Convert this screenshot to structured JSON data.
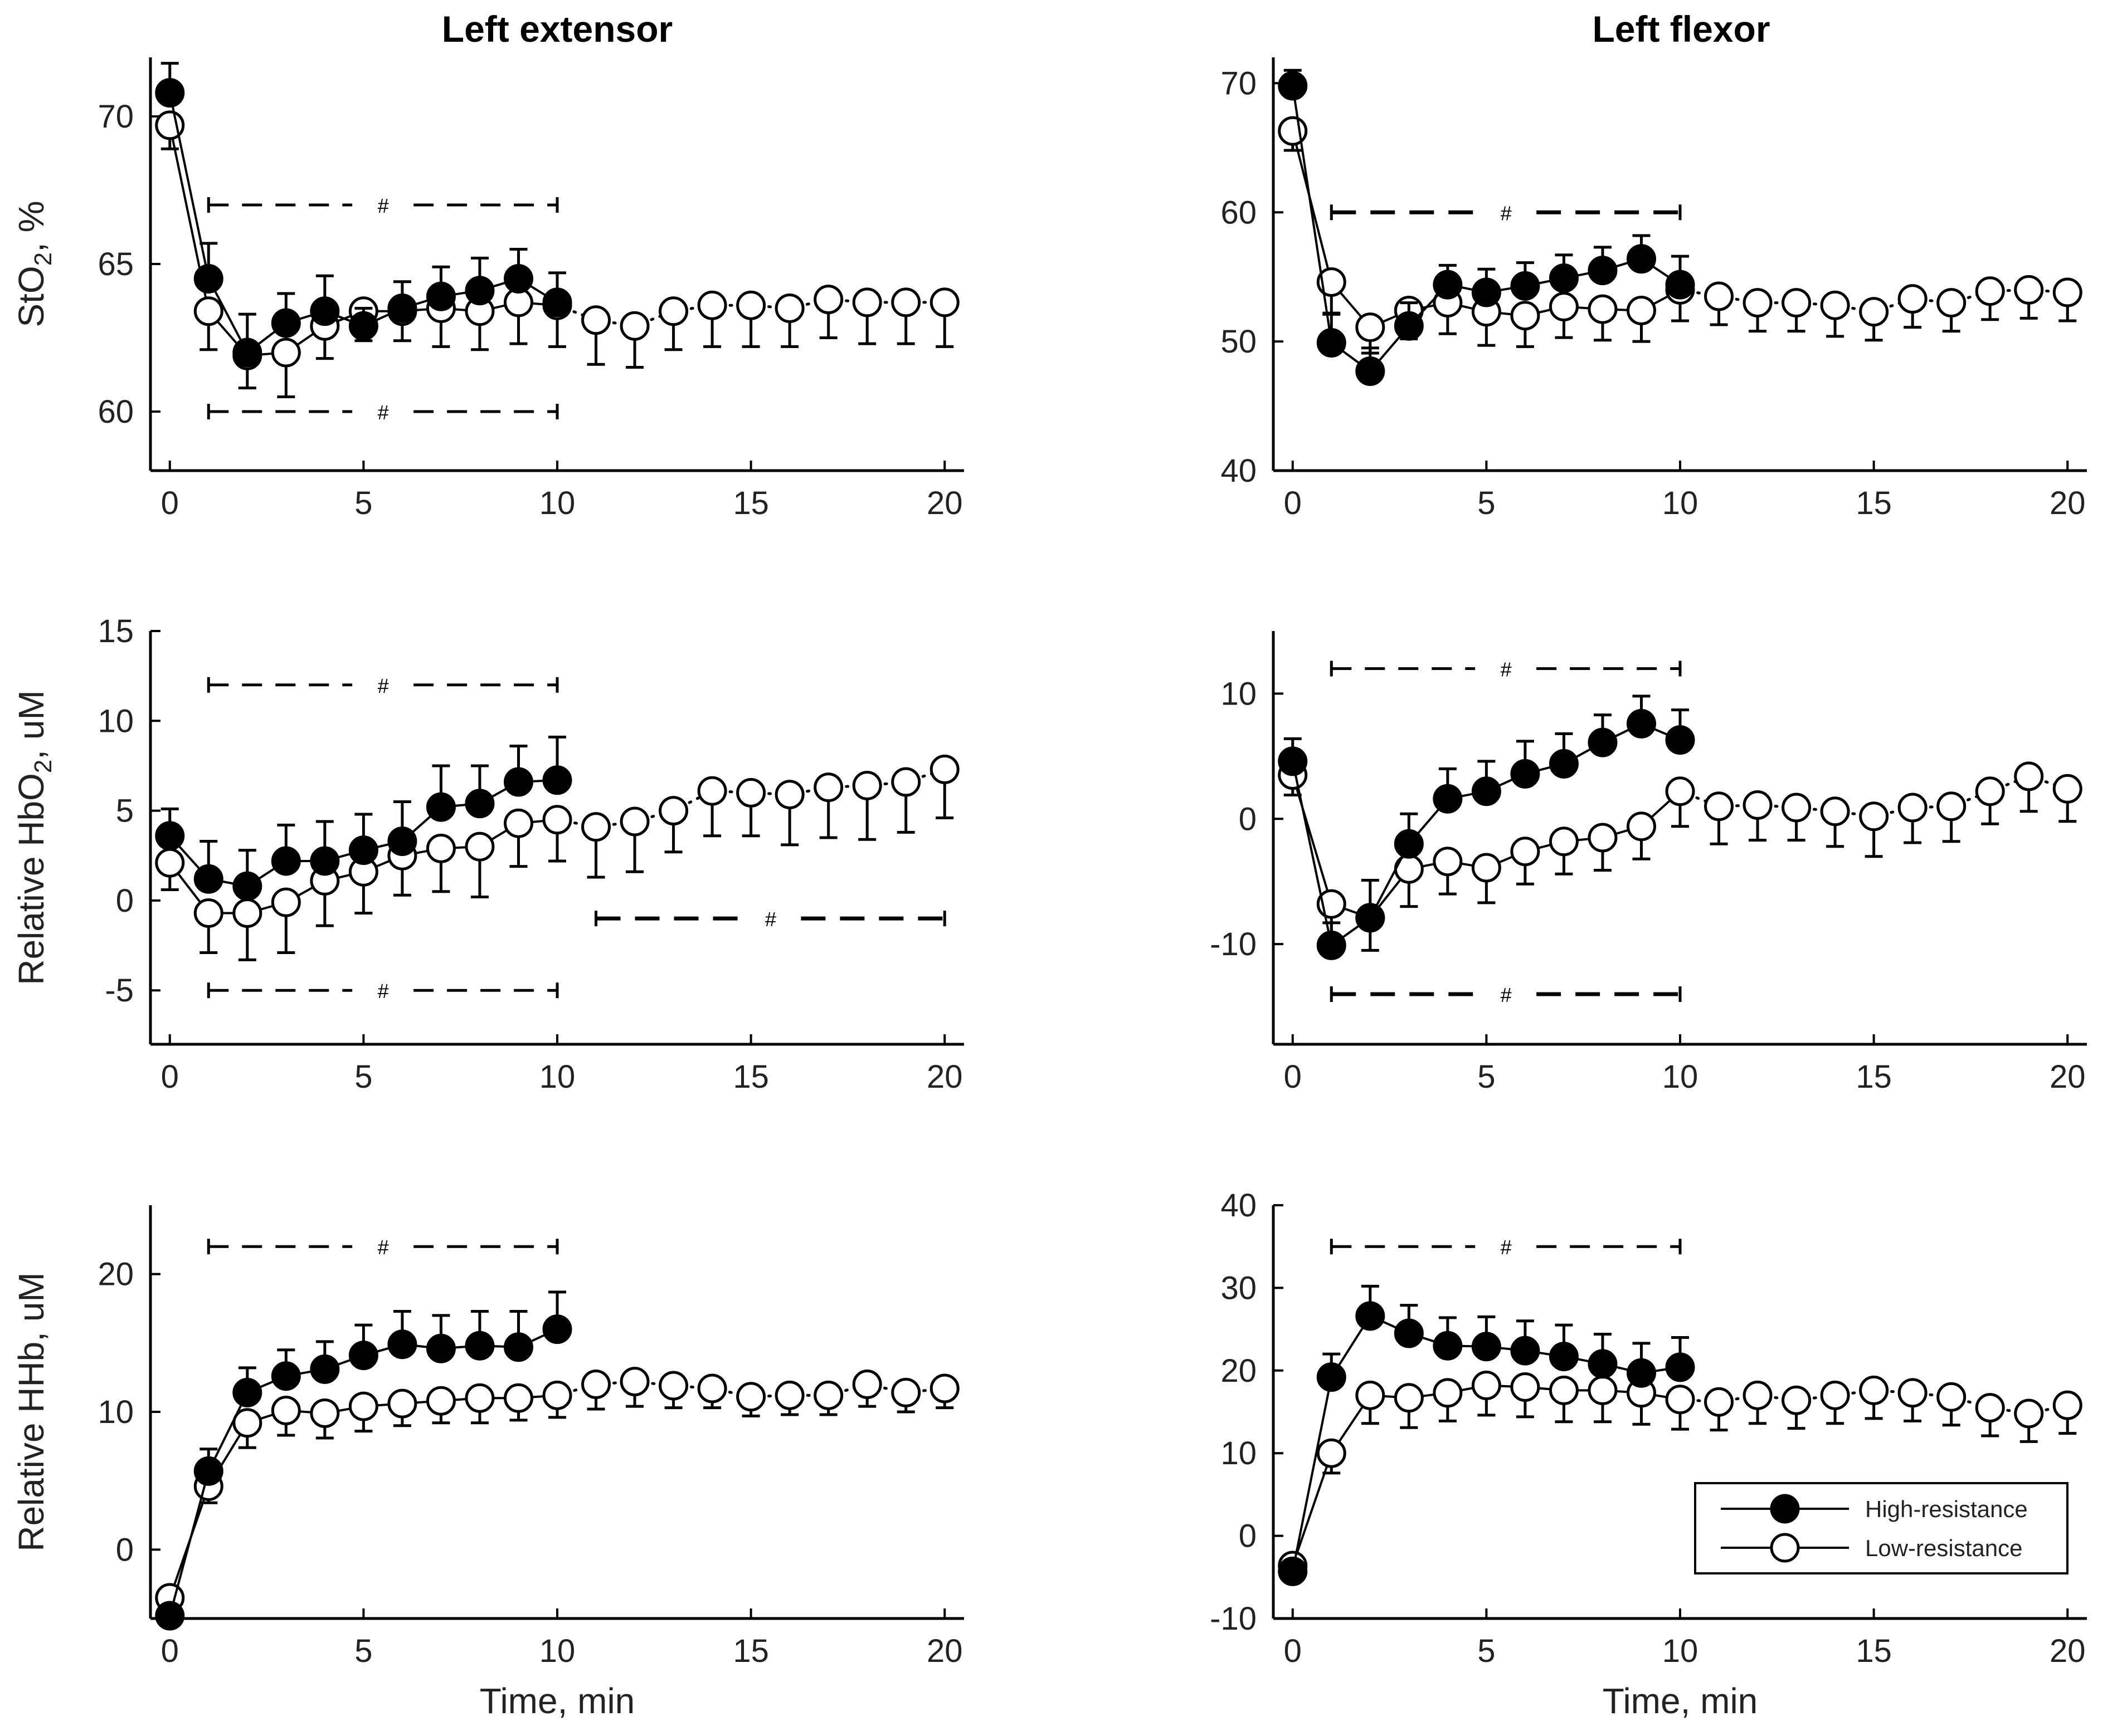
{
  "figure": {
    "column_titles": [
      "Left extensor",
      "Left flexor"
    ],
    "x_axis_title": "Time, min",
    "legend": [
      {
        "label": "High-resistance",
        "marker": "filled-circle"
      },
      {
        "label": "Low-resistance",
        "marker": "open-circle"
      }
    ],
    "sig_symbol": "#"
  },
  "chart_data": [
    {
      "type": "line",
      "panel": "StO2 – Left extensor",
      "title": "Left extensor",
      "ylabel": "StO₂, %",
      "ylabel_base": "StO",
      "ylabel_sub": "2",
      "ylabel_suffix": ", %",
      "xlabel": "",
      "xlim": [
        0,
        20
      ],
      "ylim": [
        58,
        72
      ],
      "xticks": [
        0,
        5,
        10,
        15,
        20
      ],
      "yticks": [
        60,
        65,
        70
      ],
      "series": [
        {
          "name": "High-resistance",
          "x": [
            0,
            1,
            2,
            3,
            4,
            5,
            6,
            7,
            8,
            9,
            10
          ],
          "y": [
            70.8,
            64.5,
            62.0,
            63.0,
            63.4,
            62.9,
            63.5,
            63.9,
            64.1,
            64.5,
            63.7
          ],
          "err": [
            1.0,
            1.2,
            1.3,
            1.0,
            1.2,
            0.6,
            0.9,
            1.0,
            1.1,
            1.0,
            1.0
          ]
        },
        {
          "name": "Low-resistance",
          "x": [
            0,
            1,
            2,
            3,
            4,
            5,
            6,
            7,
            8,
            9,
            10,
            11,
            12,
            13,
            14,
            15,
            16,
            17,
            18,
            19,
            20
          ],
          "y": [
            69.7,
            63.4,
            61.9,
            62.0,
            62.9,
            63.4,
            63.4,
            63.5,
            63.4,
            63.7,
            63.6,
            63.1,
            62.9,
            63.4,
            63.6,
            63.6,
            63.5,
            63.8,
            63.7,
            63.7,
            63.7
          ],
          "err": [
            0.8,
            1.3,
            1.1,
            1.5,
            1.1,
            1.0,
            1.0,
            1.3,
            1.3,
            1.4,
            1.4,
            1.5,
            1.4,
            1.3,
            1.4,
            1.4,
            1.3,
            1.3,
            1.4,
            1.4,
            1.5
          ]
        }
      ],
      "significance": [
        {
          "x1": 1,
          "x2": 10,
          "y": 67,
          "style": "thin"
        },
        {
          "x1": 1,
          "x2": 10,
          "y": 60,
          "style": "thin"
        }
      ]
    },
    {
      "type": "line",
      "panel": "StO2 – Left flexor",
      "title": "Left flexor",
      "ylabel": "",
      "xlabel": "",
      "xlim": [
        0,
        20
      ],
      "ylim": [
        40,
        72
      ],
      "xticks": [
        0,
        5,
        10,
        15,
        20
      ],
      "yticks": [
        40,
        50,
        60,
        70
      ],
      "series": [
        {
          "name": "High-resistance",
          "x": [
            0,
            1,
            2,
            3,
            4,
            5,
            6,
            7,
            8,
            9,
            10
          ],
          "y": [
            69.8,
            49.9,
            47.7,
            51.2,
            54.4,
            53.8,
            54.3,
            54.9,
            55.5,
            56.4,
            54.4
          ],
          "err": [
            1.2,
            2.3,
            1.8,
            1.8,
            1.5,
            1.8,
            1.8,
            1.8,
            1.8,
            1.8,
            2.2
          ]
        },
        {
          "name": "Low-resistance",
          "x": [
            0,
            1,
            2,
            3,
            4,
            5,
            6,
            7,
            8,
            9,
            10,
            11,
            12,
            13,
            14,
            15,
            16,
            17,
            18,
            19,
            20
          ],
          "y": [
            66.3,
            54.6,
            51.1,
            52.4,
            53.0,
            52.3,
            52.0,
            52.7,
            52.5,
            52.4,
            54.0,
            53.5,
            53.0,
            53.0,
            52.8,
            52.3,
            53.3,
            53.0,
            53.9,
            54.0,
            53.8
          ],
          "err": [
            1.5,
            2.5,
            2.0,
            2.2,
            2.4,
            2.6,
            2.4,
            2.4,
            2.4,
            2.4,
            2.4,
            2.2,
            2.2,
            2.2,
            2.4,
            2.2,
            2.2,
            2.2,
            2.2,
            2.2,
            2.2
          ]
        }
      ],
      "significance": [
        {
          "x1": 1,
          "x2": 10,
          "y": 60,
          "style": "thick"
        }
      ]
    },
    {
      "type": "line",
      "panel": "HbO2 – Left extensor",
      "ylabel": "Relative HbO₂, uM",
      "ylabel_base": "Relative HbO",
      "ylabel_sub": "2",
      "ylabel_suffix": ", uM",
      "xlabel": "",
      "xlim": [
        0,
        20
      ],
      "ylim": [
        -8,
        15
      ],
      "xticks": [
        0,
        5,
        10,
        15,
        20
      ],
      "yticks": [
        -5,
        0,
        5,
        10,
        15
      ],
      "series": [
        {
          "name": "High-resistance",
          "x": [
            0,
            1,
            2,
            3,
            4,
            5,
            6,
            7,
            8,
            9,
            10
          ],
          "y": [
            3.6,
            1.2,
            0.8,
            2.2,
            2.2,
            2.8,
            3.3,
            5.2,
            5.4,
            6.6,
            6.7
          ],
          "err": [
            1.5,
            2.1,
            2.0,
            2.0,
            2.2,
            2.0,
            2.2,
            2.3,
            2.1,
            2.0,
            2.4
          ]
        },
        {
          "name": "Low-resistance",
          "x": [
            0,
            1,
            2,
            3,
            4,
            5,
            6,
            7,
            8,
            9,
            10,
            11,
            12,
            13,
            14,
            15,
            16,
            17,
            18,
            19,
            20
          ],
          "y": [
            2.1,
            -0.7,
            -0.7,
            -0.1,
            1.1,
            1.6,
            2.5,
            2.9,
            3.0,
            4.3,
            4.5,
            4.1,
            4.4,
            5.0,
            6.1,
            6.0,
            5.9,
            6.3,
            6.4,
            6.6,
            7.3
          ],
          "err": [
            1.5,
            2.2,
            2.6,
            2.8,
            2.5,
            2.3,
            2.2,
            2.4,
            2.8,
            2.4,
            2.3,
            2.8,
            2.8,
            2.3,
            2.5,
            2.4,
            2.8,
            2.8,
            3.0,
            2.8,
            2.7
          ]
        }
      ],
      "significance": [
        {
          "x1": 1,
          "x2": 10,
          "y": 12,
          "style": "thin"
        },
        {
          "x1": 11,
          "x2": 20,
          "y": -1,
          "style": "thick"
        },
        {
          "x1": 1,
          "x2": 10,
          "y": -5,
          "style": "thin"
        }
      ]
    },
    {
      "type": "line",
      "panel": "HbO2 – Left flexor",
      "ylabel": "",
      "xlabel": "",
      "xlim": [
        0,
        20
      ],
      "ylim": [
        -18,
        15
      ],
      "xticks": [
        0,
        5,
        10,
        15,
        20
      ],
      "yticks": [
        -10,
        0,
        10
      ],
      "series": [
        {
          "name": "High-resistance",
          "x": [
            0,
            1,
            2,
            3,
            4,
            5,
            6,
            7,
            8,
            9,
            10
          ],
          "y": [
            4.6,
            -10.1,
            -7.9,
            -2.0,
            1.6,
            2.2,
            3.6,
            4.4,
            6.1,
            7.6,
            6.3
          ],
          "err": [
            1.8,
            1.8,
            3.0,
            2.4,
            2.4,
            2.4,
            2.6,
            2.4,
            2.2,
            2.2,
            2.4
          ]
        },
        {
          "name": "Low-resistance",
          "x": [
            0,
            1,
            2,
            3,
            4,
            5,
            6,
            7,
            8,
            9,
            10,
            11,
            12,
            13,
            14,
            15,
            16,
            17,
            18,
            19,
            20
          ],
          "y": [
            3.5,
            -6.8,
            -7.9,
            -4.0,
            -3.4,
            -3.9,
            -2.6,
            -1.8,
            -1.5,
            -0.6,
            2.2,
            1.0,
            1.1,
            0.9,
            0.6,
            0.2,
            0.9,
            1.0,
            2.2,
            3.4,
            2.4
          ],
          "err": [
            1.6,
            3.0,
            2.6,
            3.0,
            2.6,
            2.8,
            2.6,
            2.6,
            2.6,
            2.6,
            2.8,
            3.0,
            2.8,
            2.6,
            2.8,
            3.2,
            2.8,
            2.8,
            2.6,
            2.8,
            2.6
          ]
        }
      ],
      "significance": [
        {
          "x1": 1,
          "x2": 10,
          "y": 12,
          "style": "thin"
        },
        {
          "x1": 1,
          "x2": 10,
          "y": -14,
          "style": "thick"
        }
      ]
    },
    {
      "type": "line",
      "panel": "HHb – Left extensor",
      "ylabel": "Relative HHb, uM",
      "xlabel": "Time, min",
      "xlim": [
        0,
        20
      ],
      "ylim": [
        -5,
        25
      ],
      "xticks": [
        0,
        5,
        10,
        15,
        20
      ],
      "yticks": [
        0,
        10,
        20
      ],
      "series": [
        {
          "name": "High-resistance",
          "x": [
            0,
            1,
            2,
            3,
            4,
            5,
            6,
            7,
            8,
            9,
            10
          ],
          "y": [
            -4.8,
            5.7,
            11.4,
            12.6,
            13.1,
            14.1,
            14.9,
            14.6,
            14.8,
            14.7,
            16.0
          ],
          "err": [
            0.5,
            1.6,
            1.8,
            1.9,
            2.0,
            2.2,
            2.4,
            2.4,
            2.5,
            2.6,
            2.7
          ]
        },
        {
          "name": "Low-resistance",
          "x": [
            0,
            1,
            2,
            3,
            4,
            5,
            6,
            7,
            8,
            9,
            10,
            11,
            12,
            13,
            14,
            15,
            16,
            17,
            18,
            19,
            20
          ],
          "y": [
            -3.5,
            4.6,
            9.2,
            10.1,
            9.9,
            10.4,
            10.6,
            10.8,
            11.0,
            11.0,
            11.2,
            12.0,
            12.2,
            11.9,
            11.7,
            11.1,
            11.2,
            11.2,
            12.0,
            11.4,
            11.7
          ],
          "err": [
            0.6,
            1.2,
            1.8,
            1.8,
            1.8,
            1.8,
            1.6,
            1.6,
            1.8,
            1.6,
            1.6,
            1.8,
            1.8,
            1.6,
            1.4,
            1.4,
            1.4,
            1.4,
            1.6,
            1.4,
            1.4
          ]
        }
      ],
      "significance": [
        {
          "x1": 1,
          "x2": 10,
          "y": 22,
          "style": "thin"
        }
      ]
    },
    {
      "type": "line",
      "panel": "HHb – Left flexor",
      "ylabel": "",
      "xlabel": "Time, min",
      "xlim": [
        0,
        20
      ],
      "ylim": [
        -10,
        40
      ],
      "xticks": [
        0,
        5,
        10,
        15,
        20
      ],
      "yticks": [
        -10,
        0,
        10,
        20,
        30,
        40
      ],
      "series": [
        {
          "name": "High-resistance",
          "x": [
            0,
            1,
            2,
            3,
            4,
            5,
            6,
            7,
            8,
            9,
            10
          ],
          "y": [
            -4.3,
            19.2,
            26.6,
            24.5,
            23.0,
            22.9,
            22.4,
            21.7,
            20.8,
            19.7,
            20.4
          ],
          "err": [
            1.0,
            2.8,
            3.6,
            3.4,
            3.4,
            3.6,
            3.6,
            3.8,
            3.6,
            3.6,
            3.6
          ]
        },
        {
          "name": "Low-resistance",
          "x": [
            0,
            1,
            2,
            3,
            4,
            5,
            6,
            7,
            8,
            9,
            10,
            11,
            12,
            13,
            14,
            15,
            16,
            17,
            18,
            19,
            20
          ],
          "y": [
            -3.6,
            10.0,
            17.0,
            16.7,
            17.3,
            18.2,
            18.0,
            17.6,
            17.6,
            17.3,
            16.5,
            16.2,
            17.0,
            16.4,
            17.0,
            17.6,
            17.3,
            16.8,
            15.5,
            14.8,
            15.8
          ],
          "err": [
            0.8,
            2.4,
            3.4,
            3.6,
            3.4,
            3.6,
            3.6,
            3.8,
            3.8,
            3.8,
            3.6,
            3.4,
            3.4,
            3.4,
            3.4,
            3.4,
            3.4,
            3.4,
            3.4,
            3.4,
            3.4
          ]
        }
      ],
      "significance": [
        {
          "x1": 1,
          "x2": 10,
          "y": 35,
          "style": "thin"
        }
      ]
    }
  ]
}
